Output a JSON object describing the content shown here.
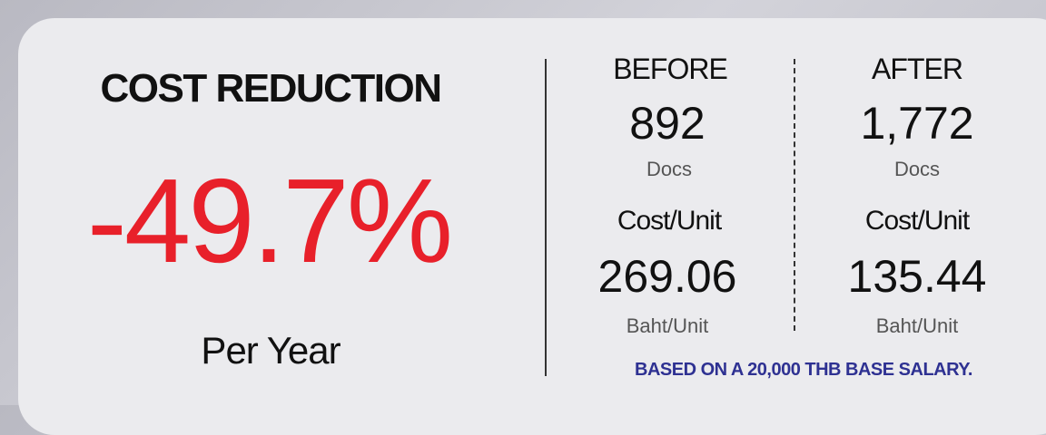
{
  "headline": {
    "title": "COST REDUCTION",
    "value": "-49.7%",
    "period": "Per Year"
  },
  "columns": [
    {
      "label": "BEFORE",
      "count": "892",
      "count_unit": "Docs",
      "cost_label": "Cost/Unit",
      "cost": "269.06",
      "cost_unit": "Baht/Unit"
    },
    {
      "label": "AFTER",
      "count": "1,772",
      "count_unit": "Docs",
      "cost_label": "Cost/Unit",
      "cost": "135.44",
      "cost_unit": "Baht/Unit"
    }
  ],
  "note": "BASED ON A 20,000 THB BASE SALARY."
}
